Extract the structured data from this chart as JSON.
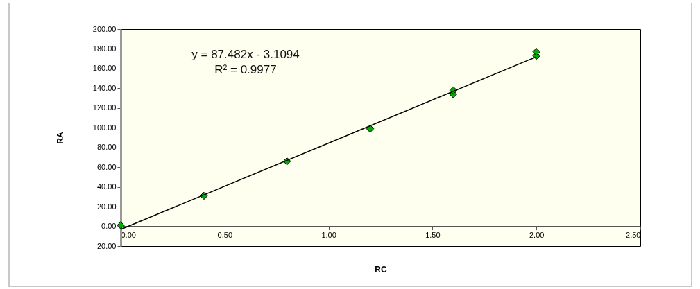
{
  "chart_data": {
    "type": "scatter",
    "xlabel": "RC",
    "ylabel": "RA",
    "annotations": [
      "y = 87.482x - 3.1094",
      "R² = 0.9977"
    ],
    "series": [
      {
        "type": "scatter",
        "marker": "diamond",
        "color": "#00b000",
        "x": [
          0,
          0.4,
          0.8,
          1.2,
          1.6,
          1.6,
          2,
          2
        ],
        "values": [
          1,
          31,
          66,
          99,
          134,
          138,
          173,
          177
        ]
      },
      {
        "type": "line",
        "color": "#000000",
        "x": [
          0,
          2
        ],
        "values": [
          -3.1,
          171.9
        ]
      }
    ],
    "grid": false,
    "xlim": [
      0,
      2.5
    ],
    "xticks": [
      {
        "value": 0,
        "label": "0.00"
      },
      {
        "value": 0.5,
        "label": "0.50"
      },
      {
        "value": 1,
        "label": "1.00"
      },
      {
        "value": 1.5,
        "label": "1.50"
      },
      {
        "value": 2,
        "label": "2.00"
      },
      {
        "value": 2.5,
        "label": "2.50"
      }
    ],
    "ylim": [
      -20,
      200
    ],
    "yticks": [
      {
        "value": -20,
        "label": "-20.00"
      },
      {
        "value": 0,
        "label": "0.00"
      },
      {
        "value": 20,
        "label": "20.00"
      },
      {
        "value": 40,
        "label": "40.00"
      },
      {
        "value": 60,
        "label": "60.00"
      },
      {
        "value": 80,
        "label": "80.00"
      },
      {
        "value": 100,
        "label": "100.00"
      },
      {
        "value": 120,
        "label": "120.00"
      },
      {
        "value": 140,
        "label": "140.00"
      },
      {
        "value": 160,
        "label": "160.00"
      },
      {
        "value": 180,
        "label": "180.00"
      },
      {
        "value": 200,
        "label": "200.00"
      }
    ]
  }
}
